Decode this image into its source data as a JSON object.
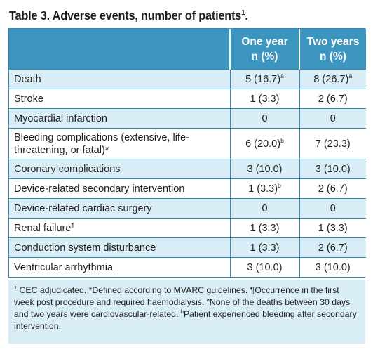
{
  "title": {
    "text": "Table 3. Adverse events, number of patients",
    "sup": "1"
  },
  "headers": {
    "col1": "",
    "col2_line1": "One year",
    "col2_line2": "n (%)",
    "col3_line1": "Two years",
    "col3_line2": "n (%)"
  },
  "rows": [
    {
      "label": "Death",
      "label_sup": "",
      "y1": "5 (16.7)",
      "y1_sup": "a",
      "y2": "8 (26.7)",
      "y2_sup": "a"
    },
    {
      "label": "Stroke",
      "label_sup": "",
      "y1": "1 (3.3)",
      "y1_sup": "",
      "y2": "2 (6.7)",
      "y2_sup": ""
    },
    {
      "label": "Myocardial infarction",
      "label_sup": "",
      "y1": "0",
      "y1_sup": "",
      "y2": "0",
      "y2_sup": ""
    },
    {
      "label": "Bleeding complications (extensive, life-threatening, or fatal)*",
      "label_sup": "",
      "y1": "6 (20.0)",
      "y1_sup": "b",
      "y2": "7 (23.3)",
      "y2_sup": ""
    },
    {
      "label": "Coronary complications",
      "label_sup": "",
      "y1": "3 (10.0)",
      "y1_sup": "",
      "y2": "3 (10.0)",
      "y2_sup": ""
    },
    {
      "label": "Device-related secondary intervention",
      "label_sup": "",
      "y1": "1 (3.3)",
      "y1_sup": "b",
      "y2": "2 (6.7)",
      "y2_sup": ""
    },
    {
      "label": "Device-related cardiac surgery",
      "label_sup": "",
      "y1": "0",
      "y1_sup": "",
      "y2": "0",
      "y2_sup": ""
    },
    {
      "label": "Renal failure",
      "label_sup": "¶",
      "y1": "1 (3.3)",
      "y1_sup": "",
      "y2": "1 (3.3)",
      "y2_sup": ""
    },
    {
      "label": "Conduction system disturbance",
      "label_sup": "",
      "y1": "1 (3.3)",
      "y1_sup": "",
      "y2": "2 (6.7)",
      "y2_sup": ""
    },
    {
      "label": "Ventricular arrhythmia",
      "label_sup": "",
      "y1": "3 (10.0)",
      "y1_sup": "",
      "y2": "3 (10.0)",
      "y2_sup": ""
    }
  ],
  "footnote": {
    "n1_sup": "1",
    "n1": " CEC adjudicated. *Defined according to MVARC guidelines. ¶Occurrence in the first week post procedure and required haemodialysis. ",
    "na_sup": "a",
    "na": "None of the deaths between 30 days and two years were cardiovascular-related. ",
    "nb_sup": "b",
    "nb": "Patient experienced bleeding after secondary intervention."
  }
}
